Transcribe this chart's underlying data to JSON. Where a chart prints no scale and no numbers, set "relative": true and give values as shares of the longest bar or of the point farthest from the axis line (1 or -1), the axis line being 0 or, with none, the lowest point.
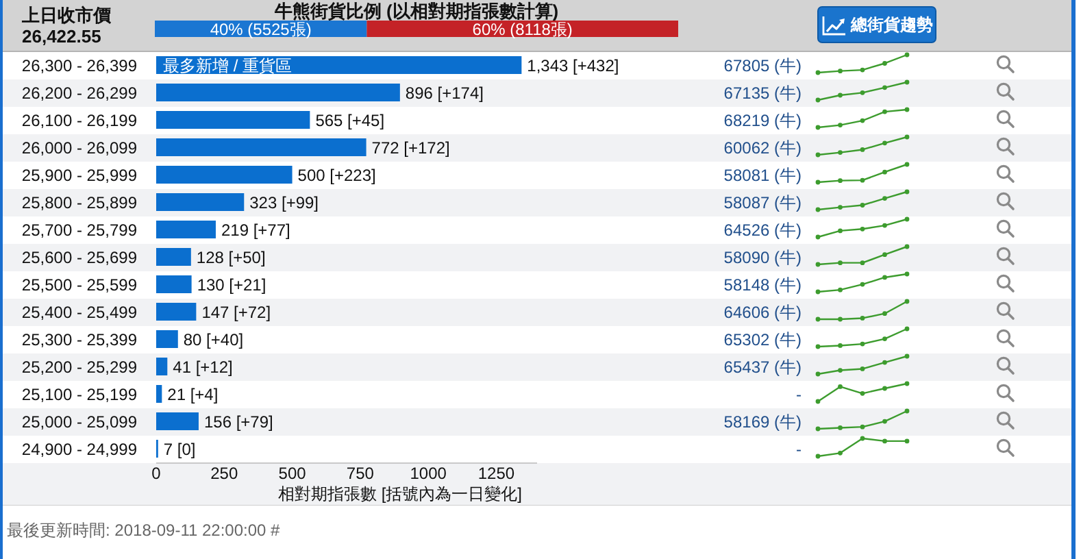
{
  "chart_data": [
    {
      "type": "bar",
      "orientation": "horizontal",
      "stacked": true,
      "title": "牛熊街貨比例 (以相對期指張數計算)",
      "categories": [
        null
      ],
      "series": [
        {
          "color": "#1a76d2",
          "values": [
            5525
          ],
          "value_labels": [
            "40% (5525張)"
          ]
        },
        {
          "color": "#c42227",
          "values": [
            8118
          ],
          "value_labels": [
            "60% (8118張)"
          ]
        }
      ],
      "annotations": [
        "上日收市價",
        "26,422.55",
        "總街貨趨勢"
      ]
    },
    {
      "type": "bar",
      "orientation": "horizontal",
      "xlabel": "相對期指張數 [括號內為一日變化]",
      "categories": [
        "26,300 - 26,399",
        "26,200 - 26,299",
        "26,100 - 26,199",
        "26,000 - 26,099",
        "25,900 - 25,999",
        "25,800 - 25,899",
        "25,700 - 25,799",
        "25,600 - 25,699",
        "25,500 - 25,599",
        "25,400 - 25,499",
        "25,300 - 25,399",
        "25,200 - 25,299",
        "25,100 - 25,199",
        "25,000 - 25,099",
        "24,900 - 24,999"
      ],
      "values": [
        1343,
        896,
        565,
        772,
        500,
        323,
        219,
        128,
        130,
        147,
        80,
        41,
        21,
        156,
        7
      ],
      "value_labels": [
        "1,343 [+432]",
        "896 [+174]",
        "565 [+45]",
        "772 [+172]",
        "500 [+223]",
        "323 [+99]",
        "219 [+77]",
        "128 [+50]",
        "130 [+21]",
        "147 [+72]",
        "80 [+40]",
        "41 [+12]",
        "21 [+4]",
        "156 [+79]",
        "7 [0]"
      ],
      "color": "#0b6fcf",
      "xlim": [
        0,
        1400
      ],
      "xticks": [
        0,
        250,
        500,
        750,
        1000,
        1250
      ],
      "y2_categories": [
        "67805 (牛)",
        "67135 (牛)",
        "68219 (牛)",
        "60062 (牛)",
        "58081 (牛)",
        "58087 (牛)",
        "64526 (牛)",
        "58090 (牛)",
        "58148 (牛)",
        "64606 (牛)",
        "65302 (牛)",
        "65437 (牛)",
        "-",
        "58169 (牛)",
        "-"
      ],
      "annotations": [
        {
          "text": "最多新增 / 重貨區",
          "x": 0,
          "y": "26,300 - 26,399"
        },
        "最後更新時間: 2018-09-11 22:00:00 #"
      ]
    },
    {
      "type": "line",
      "relative": true,
      "categories": [
        null,
        null,
        null,
        null,
        null
      ],
      "values": [
        0,
        0.09,
        0.15,
        0.52,
        1
      ],
      "color": "#3d9c2e",
      "marker": "circle"
    },
    {
      "type": "line",
      "relative": true,
      "categories": [
        null,
        null,
        null,
        null,
        null
      ],
      "values": [
        0,
        0.27,
        0.41,
        0.7,
        1
      ],
      "color": "#3d9c2e",
      "marker": "circle"
    },
    {
      "type": "line",
      "relative": true,
      "categories": [
        null,
        null,
        null,
        null,
        null
      ],
      "values": [
        0,
        0.13,
        0.38,
        0.88,
        1
      ],
      "color": "#3d9c2e",
      "marker": "circle"
    },
    {
      "type": "line",
      "relative": true,
      "categories": [
        null,
        null,
        null,
        null,
        null
      ],
      "values": [
        0,
        0.13,
        0.29,
        0.66,
        1
      ],
      "color": "#3d9c2e",
      "marker": "circle"
    },
    {
      "type": "line",
      "relative": true,
      "categories": [
        null,
        null,
        null,
        null,
        null
      ],
      "values": [
        0,
        0.09,
        0.11,
        0.57,
        1
      ],
      "color": "#3d9c2e",
      "marker": "circle"
    },
    {
      "type": "line",
      "relative": true,
      "categories": [
        null,
        null,
        null,
        null,
        null
      ],
      "values": [
        0,
        0.13,
        0.25,
        0.63,
        1
      ],
      "color": "#3d9c2e",
      "marker": "circle"
    },
    {
      "type": "line",
      "relative": true,
      "categories": [
        null,
        null,
        null,
        null,
        null
      ],
      "values": [
        0,
        0.35,
        0.45,
        0.65,
        1
      ],
      "color": "#3d9c2e",
      "marker": "circle"
    },
    {
      "type": "line",
      "relative": true,
      "categories": [
        null,
        null,
        null,
        null,
        null
      ],
      "values": [
        0,
        0.09,
        0.09,
        0.55,
        1
      ],
      "color": "#3d9c2e",
      "marker": "circle"
    },
    {
      "type": "line",
      "relative": true,
      "categories": [
        null,
        null,
        null,
        null,
        null
      ],
      "values": [
        0,
        0.11,
        0.42,
        0.81,
        1
      ],
      "color": "#3d9c2e",
      "marker": "circle"
    },
    {
      "type": "line",
      "relative": true,
      "categories": [
        null,
        null,
        null,
        null,
        null
      ],
      "values": [
        0,
        0,
        0.06,
        0.32,
        1
      ],
      "color": "#3d9c2e",
      "marker": "circle"
    },
    {
      "type": "line",
      "relative": true,
      "categories": [
        null,
        null,
        null,
        null,
        null
      ],
      "values": [
        0,
        0.06,
        0.15,
        0.44,
        1
      ],
      "color": "#3d9c2e",
      "marker": "circle"
    },
    {
      "type": "line",
      "relative": true,
      "categories": [
        null,
        null,
        null,
        null,
        null
      ],
      "values": [
        0,
        0.21,
        0.29,
        0.65,
        1
      ],
      "color": "#3d9c2e",
      "marker": "circle"
    },
    {
      "type": "line",
      "relative": true,
      "categories": [
        null,
        null,
        null,
        null,
        null
      ],
      "values": [
        0,
        0.83,
        0.45,
        0.73,
        1
      ],
      "color": "#3d9c2e",
      "marker": "circle"
    },
    {
      "type": "line",
      "relative": true,
      "categories": [
        null,
        null,
        null,
        null,
        null
      ],
      "values": [
        0,
        0.06,
        0.11,
        0.42,
        1
      ],
      "color": "#3d9c2e",
      "marker": "circle"
    },
    {
      "type": "line",
      "relative": true,
      "categories": [
        null,
        null,
        null,
        null,
        null
      ],
      "values": [
        0,
        0.18,
        1,
        0.85,
        0.85
      ],
      "color": "#3d9c2e",
      "marker": "circle"
    }
  ]
}
